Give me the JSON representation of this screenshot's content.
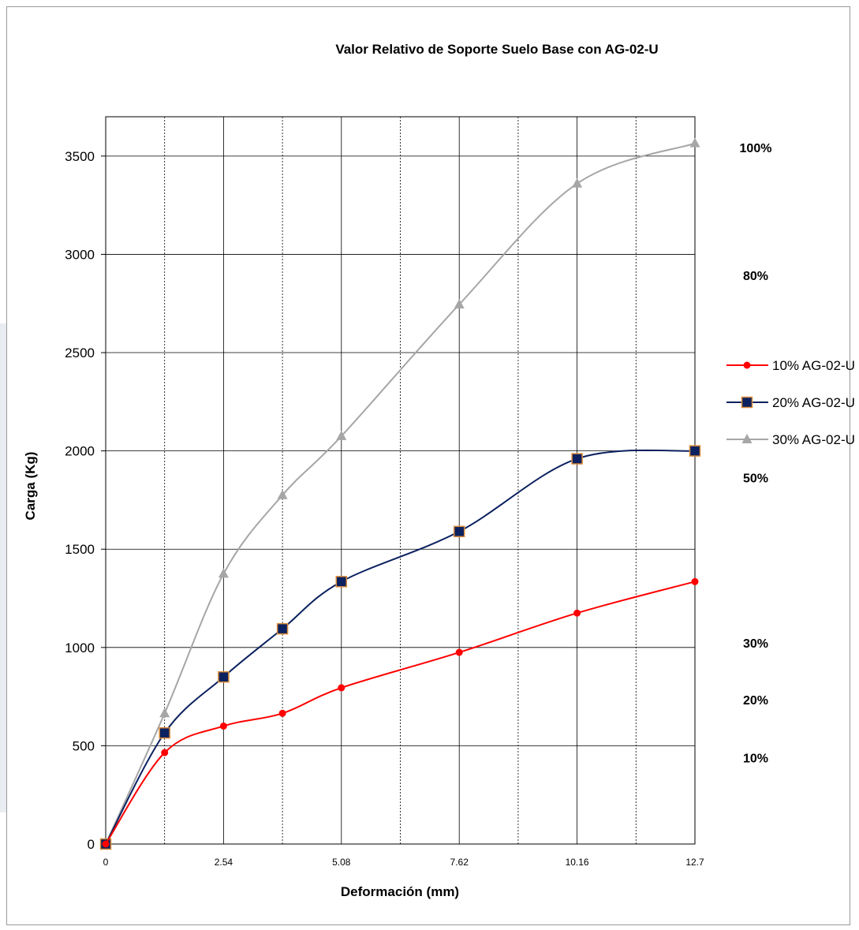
{
  "chart_data": {
    "type": "line",
    "title": "Valor Relativo de Soporte Suelo Base con  AG-02-U",
    "xlabel": "Deformación (mm)",
    "ylabel": "Carga (Kg)",
    "xlim": [
      0,
      12.7
    ],
    "ylim": [
      0,
      3700
    ],
    "x_ticks": [
      0,
      2.54,
      5.08,
      7.62,
      10.16,
      12.7
    ],
    "x_tick_labels": [
      "0",
      "2.54",
      "5.08",
      "7.62",
      "10.16",
      "12.7"
    ],
    "y_ticks": [
      0,
      500,
      1000,
      1500,
      2000,
      2500,
      3000,
      3500
    ],
    "y_tick_labels": [
      "0",
      "500",
      "1000",
      "1500",
      "2000",
      "2500",
      "3000",
      "3500"
    ],
    "x_minor_gridlines": [
      1.27,
      3.81,
      6.35,
      8.89,
      11.43
    ],
    "grid": true,
    "legend_position": "right",
    "series": [
      {
        "name": "10% AG-02-U",
        "color": "#ff0000",
        "marker": "circle",
        "x": [
          0,
          1.27,
          2.54,
          3.81,
          5.08,
          7.62,
          10.16,
          12.7
        ],
        "y": [
          0,
          465,
          600,
          665,
          795,
          975,
          1175,
          1335
        ]
      },
      {
        "name": "20% AG-02-U",
        "color": "#0b2160",
        "marker": "square",
        "x": [
          0,
          1.27,
          2.54,
          3.81,
          5.08,
          7.62,
          10.16,
          12.7
        ],
        "y": [
          0,
          565,
          850,
          1095,
          1335,
          1590,
          1960,
          2000
        ]
      },
      {
        "name": "30% AG-02-U",
        "color": "#a6a6a6",
        "marker": "triangle",
        "x": [
          0,
          1.27,
          2.54,
          3.81,
          5.08,
          7.62,
          10.16,
          12.7
        ],
        "y": [
          0,
          665,
          1375,
          1775,
          2075,
          2745,
          3360,
          3565
        ]
      }
    ],
    "annotations": [
      {
        "text": "100%",
        "y": 3520
      },
      {
        "text": "80%",
        "y": 2870
      },
      {
        "text": "50%",
        "y": 1840
      },
      {
        "text": "30%",
        "y": 1000
      },
      {
        "text": "20%",
        "y": 710
      },
      {
        "text": "10%",
        "y": 415
      }
    ]
  }
}
